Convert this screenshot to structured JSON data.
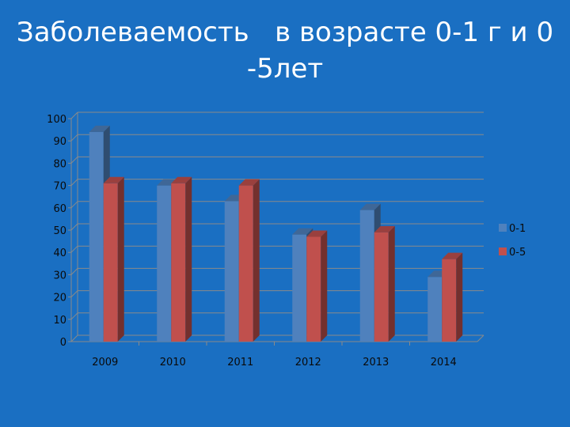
{
  "slide": {
    "title_line1": "Заболеваемость   в возрасте 0-1 г и 0",
    "title_line2": "-5лет"
  },
  "chart_data": {
    "type": "bar",
    "categories": [
      "2009",
      "2010",
      "2011",
      "2012",
      "2013",
      "2014"
    ],
    "series": [
      {
        "name": "0-1",
        "values": [
          94,
          70,
          63,
          48,
          59,
          29
        ],
        "color": "#4F81BD"
      },
      {
        "name": "0-5",
        "values": [
          71,
          71,
          70,
          47,
          49,
          37
        ],
        "color": "#C0504D"
      }
    ],
    "ylim": [
      0,
      100
    ],
    "yticks": [
      0,
      10,
      20,
      30,
      40,
      50,
      60,
      70,
      80,
      90,
      100
    ],
    "grid": true,
    "legend": "right",
    "style": "3d-clustered-column"
  }
}
